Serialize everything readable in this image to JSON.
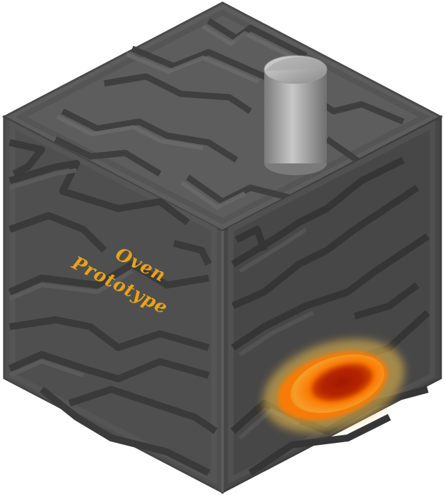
{
  "object": {
    "label_line1": "Oven",
    "label_line2": "Prototype",
    "label_color": "#e8a317",
    "icon": "oven-block-icon",
    "chimney_icon": "chimney-pipe-icon",
    "fire_icon": "fire-glow-icon"
  },
  "colors": {
    "face_top": "#5d5d5d",
    "face_left": "#4f4f4f",
    "face_right": "#474747",
    "groove": "#3a3a3a",
    "ridge": "#6a6a6a",
    "edge": "#595959",
    "chimney_light": "#c8c8c8",
    "chimney_dark": "#7a7a7a",
    "fire_outer": "#f2c14e",
    "fire_mid": "#ff7a00",
    "fire_core": "#a01800"
  }
}
